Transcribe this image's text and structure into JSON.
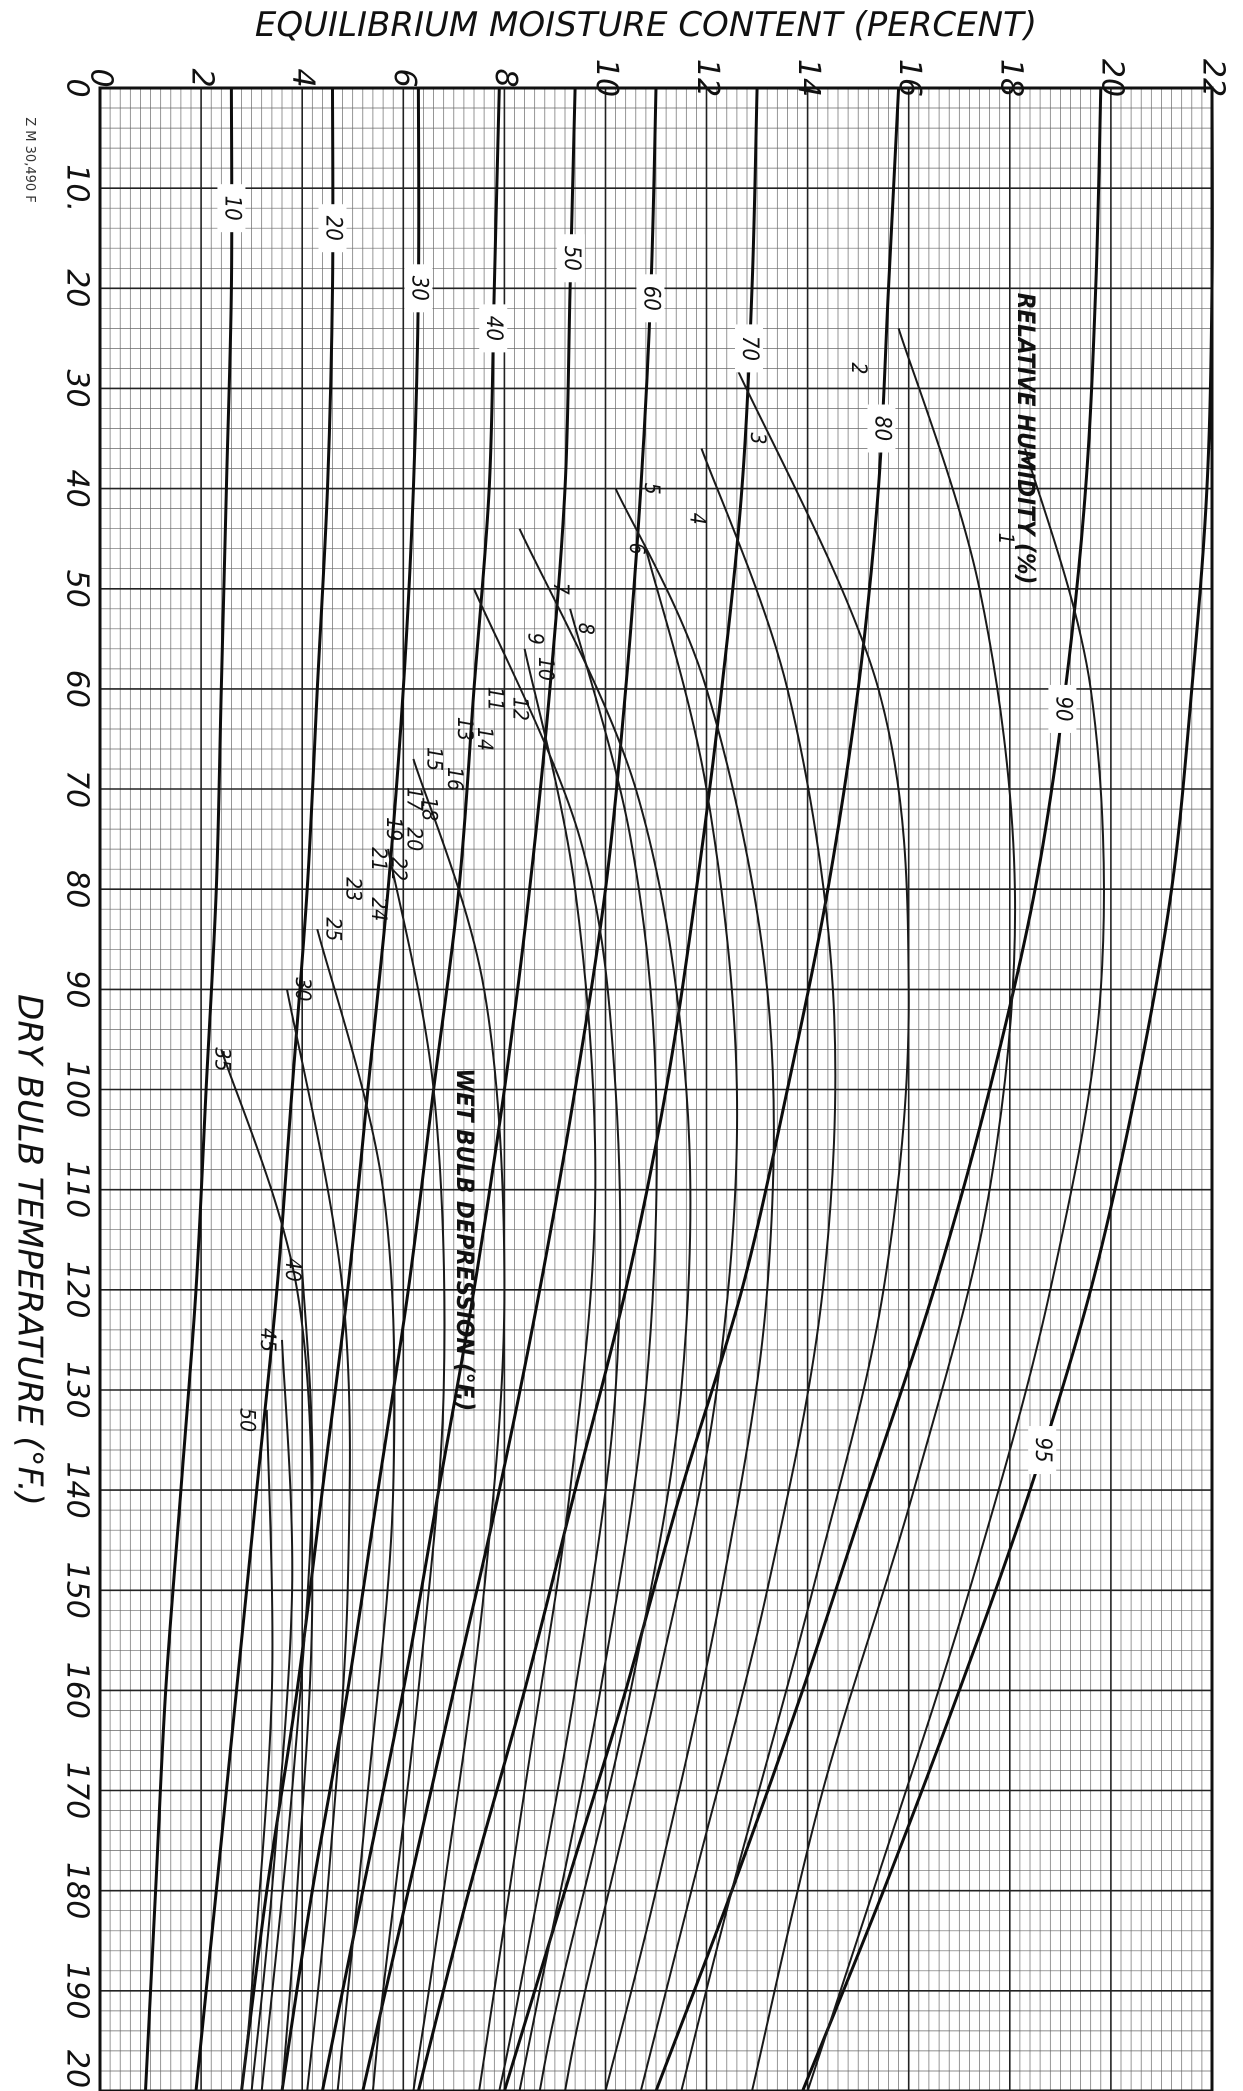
{
  "stamp": "Z M 30,490 F",
  "chart_data": {
    "type": "line",
    "title": "",
    "xlabel": "DRY BULB TEMPERATURE (°F.)",
    "ylabel": "EQUILIBRIUM MOISTURE CONTENT (PERCENT)",
    "xlim": [
      0,
      200
    ],
    "ylim": [
      0,
      22
    ],
    "x_ticks": [
      "0",
      "10.",
      "20",
      "30",
      "40",
      "50",
      "60",
      "70",
      "80",
      "90",
      "100",
      "110",
      "120",
      "130",
      "140",
      "150",
      "160",
      "170",
      "180",
      "190",
      "20"
    ],
    "y_ticks": [
      "0",
      "2",
      "4",
      "6",
      "8",
      "10",
      "12",
      "14",
      "16",
      "18",
      "20",
      "22"
    ],
    "grid": true,
    "orientation": "rotated-90-clockwise",
    "annotations": [
      {
        "text": "RELATIVE HUMIDITY (%)",
        "x": 35,
        "y": 18.3
      },
      {
        "text": "WET BULB DEPRESSION (°F.)",
        "x": 115,
        "y": 7.2
      }
    ],
    "relative_humidity_curves": [
      {
        "label": "10",
        "x": [
          0,
          20,
          40,
          60,
          80,
          100,
          120,
          140,
          160,
          180,
          200
        ],
        "y": [
          2.6,
          2.6,
          2.5,
          2.4,
          2.3,
          2.1,
          1.9,
          1.6,
          1.3,
          1.1,
          0.9
        ]
      },
      {
        "label": "20",
        "x": [
          0,
          20,
          40,
          60,
          80,
          100,
          120,
          140,
          160,
          180,
          200
        ],
        "y": [
          4.6,
          4.6,
          4.5,
          4.3,
          4.1,
          3.8,
          3.5,
          3.1,
          2.7,
          2.3,
          1.9
        ]
      },
      {
        "label": "30",
        "x": [
          0,
          20,
          40,
          60,
          80,
          100,
          120,
          140,
          160,
          180,
          200
        ],
        "y": [
          6.3,
          6.3,
          6.2,
          6.0,
          5.7,
          5.3,
          4.9,
          4.4,
          3.9,
          3.3,
          2.8
        ]
      },
      {
        "label": "40",
        "x": [
          0,
          20,
          40,
          60,
          80,
          100,
          120,
          140,
          160,
          180,
          200
        ],
        "y": [
          7.9,
          7.8,
          7.7,
          7.4,
          7.1,
          6.6,
          6.1,
          5.5,
          4.9,
          4.2,
          3.6
        ]
      },
      {
        "label": "50",
        "x": [
          0,
          20,
          40,
          60,
          80,
          100,
          120,
          140,
          160,
          180,
          200
        ],
        "y": [
          9.4,
          9.3,
          9.2,
          8.9,
          8.5,
          8.0,
          7.4,
          6.7,
          6.0,
          5.2,
          4.4
        ]
      },
      {
        "label": "60",
        "x": [
          0,
          20,
          40,
          60,
          80,
          100,
          120,
          140,
          160,
          180,
          200
        ],
        "y": [
          11.0,
          10.9,
          10.7,
          10.4,
          10.0,
          9.4,
          8.7,
          7.9,
          7.0,
          6.1,
          5.2
        ]
      },
      {
        "label": "70",
        "x": [
          0,
          20,
          40,
          60,
          80,
          100,
          120,
          140,
          160,
          180,
          200
        ],
        "y": [
          13.0,
          12.9,
          12.7,
          12.3,
          11.8,
          11.2,
          10.4,
          9.4,
          8.4,
          7.3,
          6.3
        ]
      },
      {
        "label": "80",
        "x": [
          0,
          20,
          40,
          60,
          80,
          100,
          120,
          140,
          160,
          180,
          200
        ],
        "y": [
          15.8,
          15.6,
          15.4,
          15.0,
          14.4,
          13.6,
          12.7,
          11.5,
          10.4,
          9.2,
          8.0
        ]
      },
      {
        "label": "90",
        "x": [
          0,
          20,
          40,
          60,
          80,
          100,
          120,
          140,
          160,
          180,
          200
        ],
        "y": [
          19.8,
          19.7,
          19.5,
          19.1,
          18.5,
          17.6,
          16.5,
          15.2,
          13.9,
          12.5,
          11.0
        ]
      },
      {
        "label": "95",
        "x": [
          0,
          20,
          40,
          60,
          80,
          100,
          120,
          140,
          160,
          180,
          200
        ],
        "y": [
          22.0,
          22.0,
          21.9,
          21.6,
          21.2,
          20.5,
          19.6,
          18.4,
          17.0,
          15.5,
          13.9
        ]
      }
    ],
    "wet_bulb_depression_labels": [
      "1",
      "2",
      "3",
      "4",
      "5",
      "6",
      "7",
      "8",
      "9",
      "10",
      "11",
      "12",
      "13",
      "14",
      "15",
      "16",
      "17",
      "18",
      "19",
      "20",
      "21",
      "22",
      "23",
      "24",
      "25",
      "30",
      "35",
      "40",
      "45",
      "50"
    ],
    "wet_bulb_depression_curves": [
      {
        "label": "1",
        "x": [
          36,
          60,
          90,
          120,
          150,
          180,
          200
        ],
        "y": [
          18.3,
          19.6,
          19.8,
          18.8,
          17.2,
          15.3,
          14.0
        ]
      },
      {
        "label": "2",
        "x": [
          24,
          50,
          80,
          110,
          140,
          170,
          200
        ],
        "y": [
          15.8,
          17.4,
          18.1,
          17.6,
          16.1,
          14.3,
          12.9
        ]
      },
      {
        "label": "3",
        "x": [
          28,
          60,
          90,
          120,
          150,
          180,
          200
        ],
        "y": [
          12.6,
          15.4,
          16.0,
          15.5,
          14.1,
          12.5,
          11.5
        ]
      },
      {
        "label": "4",
        "x": [
          36,
          60,
          90,
          120,
          150,
          180,
          200
        ],
        "y": [
          11.9,
          13.6,
          14.5,
          14.3,
          13.2,
          11.7,
          10.7
        ]
      },
      {
        "label": "5",
        "x": [
          40,
          60,
          90,
          120,
          150,
          180,
          200
        ],
        "y": [
          10.2,
          12.0,
          13.2,
          13.2,
          12.3,
          11.0,
          10.0
        ]
      },
      {
        "label": "6",
        "x": [
          46,
          70,
          100,
          130,
          160,
          190,
          200
        ],
        "y": [
          10.8,
          12.0,
          12.6,
          12.2,
          11.0,
          9.6,
          9.2
        ]
      },
      {
        "label": "7",
        "x": [
          44,
          70,
          100,
          130,
          160,
          190,
          200
        ],
        "y": [
          8.3,
          10.6,
          11.6,
          11.5,
          10.5,
          9.1,
          8.7
        ]
      },
      {
        "label": "8",
        "x": [
          52,
          75,
          100,
          130,
          160,
          190,
          200
        ],
        "y": [
          9.3,
          10.5,
          11.0,
          10.8,
          9.9,
          8.7,
          8.3
        ]
      },
      {
        "label": "9",
        "x": [
          50,
          75,
          100,
          130,
          160,
          190,
          200
        ],
        "y": [
          7.4,
          9.5,
          10.2,
          10.2,
          9.4,
          8.3,
          7.9
        ]
      },
      {
        "label": "10",
        "x": [
          56,
          80,
          110,
          140,
          170,
          200
        ],
        "y": [
          8.4,
          9.4,
          9.8,
          9.3,
          8.4,
          7.5
        ]
      },
      {
        "label": "15",
        "x": [
          67,
          90,
          120,
          150,
          180,
          200
        ],
        "y": [
          6.2,
          7.6,
          8.0,
          7.6,
          6.8,
          6.2
        ]
      },
      {
        "label": "20",
        "x": [
          76,
          100,
          130,
          160,
          190,
          200
        ],
        "y": [
          5.7,
          6.6,
          6.8,
          6.3,
          5.6,
          5.4
        ]
      },
      {
        "label": "25",
        "x": [
          84,
          110,
          140,
          170,
          200
        ],
        "y": [
          4.3,
          5.6,
          5.8,
          5.3,
          4.7
        ]
      },
      {
        "label": "30",
        "x": [
          90,
          120,
          150,
          180,
          200
        ],
        "y": [
          3.7,
          4.8,
          4.9,
          4.5,
          4.1
        ]
      },
      {
        "label": "35",
        "x": [
          96,
          120,
          150,
          180,
          200
        ],
        "y": [
          2.4,
          3.9,
          4.2,
          3.9,
          3.6
        ]
      },
      {
        "label": "40",
        "x": [
          118,
          140,
          170,
          200
        ],
        "y": [
          4.0,
          4.2,
          3.8,
          3.2
        ]
      },
      {
        "label": "45",
        "x": [
          125,
          150,
          180,
          200
        ],
        "y": [
          3.6,
          3.8,
          3.4,
          3.0
        ]
      },
      {
        "label": "50",
        "x": [
          132,
          160,
          190,
          200
        ],
        "y": [
          3.3,
          3.4,
          3.0,
          2.8
        ]
      }
    ]
  }
}
